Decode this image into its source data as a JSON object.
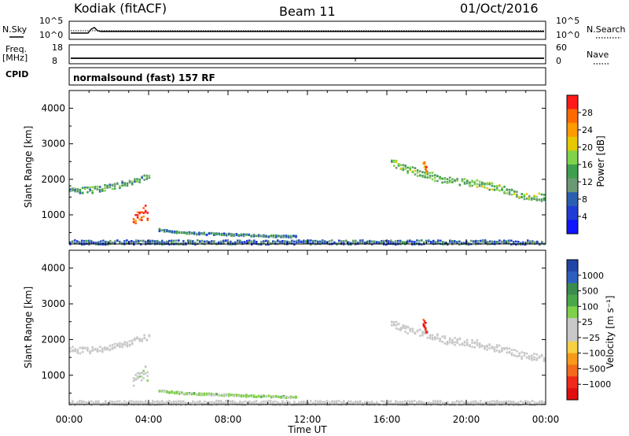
{
  "header": {
    "title": "Kodiak (fitACF)",
    "beam": "Beam 11",
    "date": "01/Oct/2016"
  },
  "top_panels": {
    "nsky_label": "N.Sky",
    "nsearch_label": "N.Search",
    "noise_ticks": [
      "10^5",
      "10^0"
    ],
    "freq_label": "Freq.",
    "freq_unit": "[MHz]",
    "freq_ticks": [
      "18",
      "8"
    ],
    "nave_label": "Nave",
    "nave_ticks": [
      "60",
      "0"
    ],
    "cpid_label": "CPID",
    "cpid_value": "normalsound (fast) 157 RF"
  },
  "power_panel": {
    "ylabel": "Slant Range [km]",
    "colorbar_label": "Power [dB]",
    "colorbar_ticks": [
      "28",
      "24",
      "20",
      "16",
      "12",
      "8",
      "4"
    ],
    "colorbar_colors": [
      "#ff1a1a",
      "#ff6a00",
      "#ff9a00",
      "#e6c800",
      "#7fd34a",
      "#3ea04e",
      "#6a9a73",
      "#2d5fb0",
      "#1f3dd6",
      "#0f15ff"
    ]
  },
  "velocity_panel": {
    "ylabel": "Slant Range [km]",
    "colorbar_label": "Velocity [m s⁻¹]",
    "colorbar_ticks": [
      "1000",
      "500",
      "100",
      "25",
      "−25",
      "−100",
      "−500",
      "−1000"
    ],
    "colorbar_colors": [
      "#2145a6",
      "#2e5fbf",
      "#3a8b4c",
      "#4aa84a",
      "#7fd04a",
      "#c8c8c8",
      "#c8c8c8",
      "#f5d040",
      "#f79a1a",
      "#f26a1a",
      "#ef2a1a",
      "#e01010"
    ]
  },
  "x_axis": {
    "label": "Time UT",
    "ticks": [
      "00:00",
      "04:00",
      "08:00",
      "12:00",
      "16:00",
      "20:00",
      "00:00"
    ]
  },
  "chart_data": [
    {
      "type": "heatmap",
      "title": "Power [dB]",
      "xlabel": "Time UT",
      "ylabel": "Slant Range [km]",
      "xlim": [
        0,
        24
      ],
      "ylim": [
        180,
        4500
      ],
      "yticks": [
        1000,
        2000,
        3000,
        4000
      ],
      "colorscale": {
        "min": 0,
        "max": 30
      },
      "features": [
        {
          "name": "band-early",
          "x": [
            0,
            0.5,
            1,
            1.5,
            2,
            2.5,
            3,
            3.5,
            4.1
          ],
          "y": [
            1780,
            1720,
            1720,
            1760,
            1800,
            1870,
            1930,
            2030,
            2130
          ],
          "width_km": 170,
          "value": 12
        },
        {
          "name": "blob-0330",
          "x": [
            3.2,
            3.4,
            3.6,
            3.8,
            4.0
          ],
          "y": [
            800,
            1000,
            1000,
            1150,
            900
          ],
          "width_km": 300,
          "value": 26
        },
        {
          "name": "decay-tail",
          "x": [
            4.5,
            5.5,
            6.5,
            7.5,
            8.5,
            9.5,
            10.5,
            11.5
          ],
          "y": [
            600,
            530,
            500,
            480,
            460,
            440,
            420,
            410
          ],
          "width_km": 60,
          "value": 10
        },
        {
          "name": "band-late",
          "x": [
            16.2,
            17,
            18,
            19,
            20,
            21,
            22,
            23,
            24
          ],
          "y": [
            2500,
            2300,
            2150,
            2000,
            1950,
            1850,
            1700,
            1550,
            1500
          ],
          "width_km": 220,
          "value": 14
        },
        {
          "name": "spike-1800",
          "x": [
            17.8,
            17.9,
            18.0
          ],
          "y": [
            2500,
            2400,
            2200
          ],
          "width_km": 200,
          "value": 24
        },
        {
          "name": "ground-scatter",
          "x": [
            0,
            24
          ],
          "y": [
            250,
            250
          ],
          "width_km": 120,
          "value": 8
        }
      ]
    },
    {
      "type": "heatmap",
      "title": "Velocity [m s⁻¹]",
      "xlabel": "Time UT",
      "ylabel": "Slant Range [km]",
      "xlim": [
        0,
        24
      ],
      "ylim": [
        180,
        4500
      ],
      "yticks": [
        1000,
        2000,
        3000,
        4000
      ],
      "colorscale": {
        "min": -1000,
        "max": 1000
      },
      "features": [
        {
          "name": "band-early",
          "x": [
            0,
            0.5,
            1,
            1.5,
            2,
            2.5,
            3,
            3.5,
            4.1
          ],
          "y": [
            1780,
            1720,
            1720,
            1760,
            1800,
            1870,
            1930,
            2030,
            2130
          ],
          "width_km": 170,
          "value": 0
        },
        {
          "name": "blob-0330",
          "x": [
            3.2,
            3.4,
            3.6,
            3.8,
            4.0
          ],
          "y": [
            800,
            1000,
            1000,
            1150,
            900
          ],
          "width_km": 300,
          "value": 100
        },
        {
          "name": "decay-tail",
          "x": [
            4.5,
            5.5,
            6.5,
            7.5,
            8.5,
            9.5,
            10.5,
            11.5
          ],
          "y": [
            600,
            530,
            500,
            480,
            460,
            440,
            420,
            410
          ],
          "width_km": 60,
          "value": 200
        },
        {
          "name": "band-late",
          "x": [
            16.2,
            17,
            18,
            19,
            20,
            21,
            22,
            23,
            24
          ],
          "y": [
            2500,
            2300,
            2150,
            2000,
            1950,
            1850,
            1700,
            1550,
            1500
          ],
          "width_km": 220,
          "value": 0
        },
        {
          "name": "spike-1800",
          "x": [
            17.8,
            17.9,
            18.0
          ],
          "y": [
            2500,
            2400,
            2200
          ],
          "width_km": 200,
          "value": -800
        },
        {
          "name": "ground-scatter",
          "x": [
            0,
            24
          ],
          "y": [
            250,
            250
          ],
          "width_km": 120,
          "value": 20
        }
      ]
    }
  ]
}
